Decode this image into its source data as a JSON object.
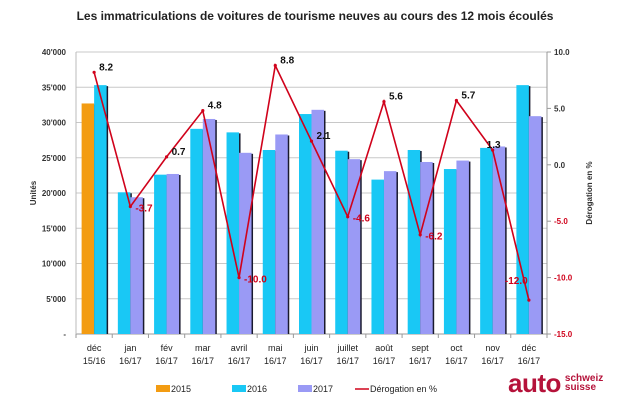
{
  "chart_data": {
    "type": "bar",
    "title": "Les immatriculations de voitures de tourisme neuves au cours des 12 mois écoulés",
    "ylabel": "Unités",
    "y2label": "Dérogation en %",
    "ylim": [
      0,
      40000
    ],
    "y2lim": [
      -15,
      10
    ],
    "yticks": [
      "-",
      "5'000",
      "10'000",
      "15'000",
      "20'000",
      "25'000",
      "30'000",
      "35'000",
      "40'000"
    ],
    "y2ticks": [
      "-15.0",
      "-10.0",
      "-5.0",
      "0.0",
      "5.0",
      "10.0"
    ],
    "grid": true,
    "legend_position": "bottom",
    "categories": [
      [
        "déc",
        "15/16"
      ],
      [
        "jan",
        "16/17"
      ],
      [
        "fév",
        "16/17"
      ],
      [
        "mar",
        "16/17"
      ],
      [
        "avril",
        "16/17"
      ],
      [
        "mai",
        "16/17"
      ],
      [
        "juin",
        "16/17"
      ],
      [
        "juillet",
        "16/17"
      ],
      [
        "août",
        "16/17"
      ],
      [
        "sept",
        "16/17"
      ],
      [
        "oct",
        "16/17"
      ],
      [
        "nov",
        "16/17"
      ],
      [
        "déc",
        "16/17"
      ]
    ],
    "series": [
      {
        "name": "2015",
        "type": "bar",
        "color": "#f39c12",
        "values": [
          32700,
          null,
          null,
          null,
          null,
          null,
          null,
          null,
          null,
          null,
          null,
          null,
          null
        ]
      },
      {
        "name": "2016",
        "type": "bar",
        "color": "#19c8f5",
        "values": [
          35300,
          20100,
          22600,
          29100,
          28600,
          26100,
          31200,
          26000,
          21900,
          26100,
          23400,
          26400,
          35300
        ]
      },
      {
        "name": "2017",
        "type": "bar",
        "color": "#9a9af5",
        "values": [
          null,
          19400,
          22700,
          30500,
          25700,
          28300,
          31800,
          24800,
          23100,
          24400,
          24600,
          26600,
          30900
        ]
      },
      {
        "name": "Dérogation en %",
        "type": "line",
        "axis": "right",
        "color": "#d0021b",
        "values": [
          8.2,
          -3.7,
          0.7,
          4.8,
          -10.0,
          8.8,
          2.1,
          -4.6,
          5.6,
          -6.2,
          5.7,
          1.3,
          -12.0
        ],
        "labels": [
          "8.2",
          "-3.7",
          "0.7",
          "4.8",
          "-10.0",
          "8.8",
          "2.1",
          "-4.6",
          "5.6",
          "-6.2",
          "5.7",
          "1.3",
          "-12.0"
        ]
      }
    ]
  },
  "logo": {
    "main": "auto",
    "line1": "schweiz",
    "line2": "suisse"
  }
}
